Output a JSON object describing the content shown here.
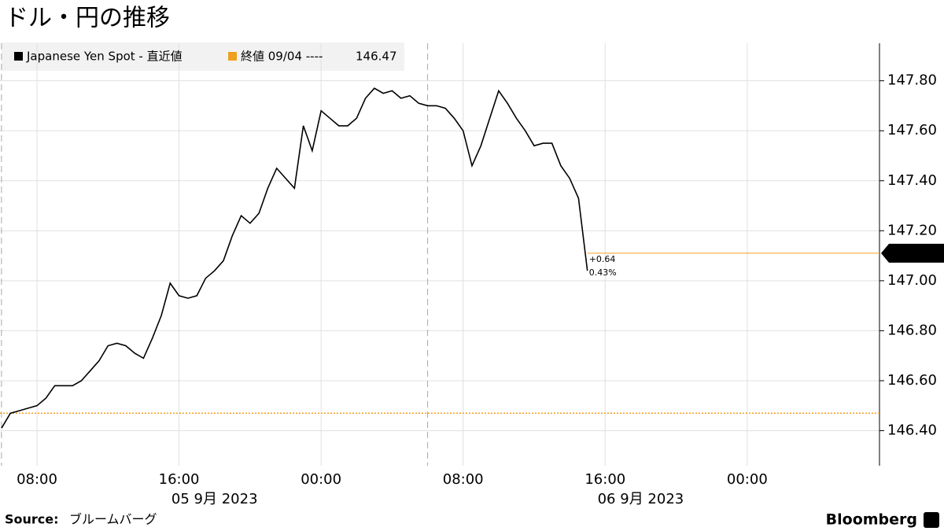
{
  "chart_data": {
    "type": "line",
    "title": "ドル・円の推移",
    "x": [
      "2023-09-05 06:00",
      "2023-09-05 06:30",
      "2023-09-05 07:00",
      "2023-09-05 07:30",
      "2023-09-05 08:00",
      "2023-09-05 08:30",
      "2023-09-05 09:00",
      "2023-09-05 09:30",
      "2023-09-05 10:00",
      "2023-09-05 10:30",
      "2023-09-05 11:00",
      "2023-09-05 11:30",
      "2023-09-05 12:00",
      "2023-09-05 12:30",
      "2023-09-05 13:00",
      "2023-09-05 13:30",
      "2023-09-05 14:00",
      "2023-09-05 14:30",
      "2023-09-05 15:00",
      "2023-09-05 15:30",
      "2023-09-05 16:00",
      "2023-09-05 16:30",
      "2023-09-05 17:00",
      "2023-09-05 17:30",
      "2023-09-05 18:00",
      "2023-09-05 18:30",
      "2023-09-05 19:00",
      "2023-09-05 19:30",
      "2023-09-05 20:00",
      "2023-09-05 20:30",
      "2023-09-05 21:00",
      "2023-09-05 21:30",
      "2023-09-05 22:00",
      "2023-09-05 22:30",
      "2023-09-05 23:00",
      "2023-09-05 23:30",
      "2023-09-06 00:00",
      "2023-09-06 00:30",
      "2023-09-06 01:00",
      "2023-09-06 01:30",
      "2023-09-06 02:00",
      "2023-09-06 02:30",
      "2023-09-06 03:00",
      "2023-09-06 03:30",
      "2023-09-06 04:00",
      "2023-09-06 04:30",
      "2023-09-06 05:00",
      "2023-09-06 05:30",
      "2023-09-06 06:00",
      "2023-09-06 06:30",
      "2023-09-06 07:00",
      "2023-09-06 07:30",
      "2023-09-06 08:00",
      "2023-09-06 08:30",
      "2023-09-06 09:00",
      "2023-09-06 09:30",
      "2023-09-06 10:00",
      "2023-09-06 10:30",
      "2023-09-06 11:00",
      "2023-09-06 11:30",
      "2023-09-06 12:00",
      "2023-09-06 12:30",
      "2023-09-06 13:00",
      "2023-09-06 13:30",
      "2023-09-06 14:00",
      "2023-09-06 14:30",
      "2023-09-06 15:00"
    ],
    "series": [
      {
        "name": "Japanese Yen Spot - 直近値",
        "color": "#000000",
        "values": [
          146.41,
          146.47,
          146.48,
          146.49,
          146.5,
          146.53,
          146.58,
          146.58,
          146.58,
          146.6,
          146.64,
          146.68,
          146.74,
          146.75,
          146.74,
          146.71,
          146.69,
          146.77,
          146.86,
          146.99,
          146.94,
          146.93,
          146.94,
          147.01,
          147.04,
          147.08,
          147.18,
          147.26,
          147.23,
          147.27,
          147.37,
          147.45,
          147.41,
          147.37,
          147.62,
          147.52,
          147.68,
          147.65,
          147.62,
          147.62,
          147.65,
          147.73,
          147.77,
          147.75,
          147.76,
          147.73,
          147.74,
          147.71,
          147.7,
          147.7,
          147.69,
          147.65,
          147.6,
          147.46,
          147.54,
          147.65,
          147.76,
          147.71,
          147.65,
          147.6,
          147.54,
          147.55,
          147.55,
          147.46,
          147.41,
          147.33,
          147.04
        ]
      }
    ],
    "reference": {
      "name": "終値 09/04 ----",
      "value": 146.47,
      "color": "#f0a020"
    },
    "last_value": {
      "value": 147.11,
      "color": "#f0a020"
    },
    "change": {
      "value": 0.64,
      "value_label": "+0.64",
      "percent": 0.43,
      "percent_label": "0.43%"
    },
    "xlim": [
      "2023-09-05 05:55",
      "2023-09-07 07:27"
    ],
    "xticks": [
      {
        "value": "2023-09-05 08:00",
        "label": "08:00"
      },
      {
        "value": "2023-09-05 16:00",
        "label": "16:00"
      },
      {
        "value": "2023-09-06 00:00",
        "label": "00:00"
      },
      {
        "value": "2023-09-06 08:00",
        "label": "08:00"
      },
      {
        "value": "2023-09-06 16:00",
        "label": "16:00"
      },
      {
        "value": "2023-09-07 00:00",
        "label": "00:00"
      }
    ],
    "date_labels": [
      {
        "value": "2023-09-05 18:00",
        "label": "05 9月 2023"
      },
      {
        "value": "2023-09-06 18:00",
        "label": "06 9月 2023"
      }
    ],
    "separators": [
      "2023-09-05 06:00",
      "2023-09-06 06:00"
    ],
    "ylim": [
      146.26,
      147.95
    ],
    "yticks": [
      {
        "value": 146.4,
        "label": "146.40"
      },
      {
        "value": 146.6,
        "label": "146.60"
      },
      {
        "value": 146.8,
        "label": "146.80"
      },
      {
        "value": 147.0,
        "label": "147.00"
      },
      {
        "value": 147.2,
        "label": "147.20"
      },
      {
        "value": 147.4,
        "label": "147.40"
      },
      {
        "value": 147.6,
        "label": "147.60"
      },
      {
        "value": 147.8,
        "label": "147.80"
      }
    ],
    "grid": true,
    "source_label": "Source:",
    "source": "ブルームバーグ",
    "brand": "Bloomberg"
  }
}
